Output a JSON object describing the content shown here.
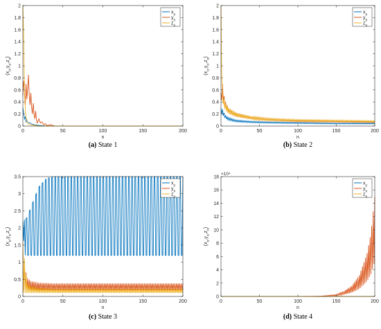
{
  "colors": {
    "x": "#0072BD",
    "y": "#D95319",
    "z": "#EDB120",
    "axis": "#262626"
  },
  "chart_data": [
    {
      "type": "line",
      "caption_tag": "(a)",
      "caption_text": "State 1",
      "xlabel": "n",
      "ylabel": "(x_n,y_n,z_n)",
      "xlim": [
        0,
        200
      ],
      "ylim": [
        0,
        2
      ],
      "xticks": [
        0,
        50,
        100,
        150,
        200
      ],
      "yticks": [
        0,
        0.2,
        0.4,
        0.6,
        0.8,
        1,
        1.2,
        1.4,
        1.6,
        1.8,
        2
      ],
      "ytick_labels": [
        "0",
        "0.2",
        "0.4",
        "0.6",
        "0.8",
        "1",
        "1.2",
        "1.4",
        "1.6",
        "1.8",
        "2"
      ],
      "legend": [
        "x_n",
        "y_n",
        "z_n"
      ],
      "legend_position": "top-right",
      "series": [
        {
          "name": "x_n",
          "x": [
            0,
            1,
            2,
            3,
            4,
            5,
            6,
            8,
            10,
            12,
            15,
            20,
            30,
            200
          ],
          "values": [
            0.3,
            0.22,
            0.12,
            0.15,
            0.07,
            0.1,
            0.05,
            0.06,
            0.04,
            0.03,
            0.02,
            0.01,
            0,
            0
          ]
        },
        {
          "name": "y_n",
          "x": [
            0,
            1,
            2,
            3,
            4,
            5,
            6,
            7,
            8,
            9,
            10,
            11,
            12,
            13,
            14,
            15,
            16,
            17,
            18,
            20,
            22,
            24,
            26,
            28,
            30,
            35,
            40,
            200
          ],
          "values": [
            0.5,
            0.75,
            0.6,
            0.35,
            0.7,
            0.45,
            0.62,
            0.85,
            0.5,
            0.35,
            0.55,
            0.3,
            0.2,
            0.38,
            0.2,
            0.12,
            0.25,
            0.1,
            0.05,
            0.12,
            0.05,
            0.07,
            0.02,
            0.04,
            0.01,
            0.02,
            0,
            0
          ]
        },
        {
          "name": "z_n",
          "x": [
            0,
            1,
            2,
            3,
            4,
            5,
            6,
            8,
            10,
            15,
            20,
            200
          ],
          "values": [
            2.0,
            1.5,
            0.6,
            0.3,
            0.15,
            0.08,
            0.05,
            0.03,
            0.02,
            0.01,
            0,
            0
          ]
        }
      ]
    },
    {
      "type": "line",
      "caption_tag": "(b)",
      "caption_text": "State 2",
      "xlabel": "n",
      "ylabel": "(x_n,y_n,z_n)",
      "xlim": [
        0,
        200
      ],
      "ylim": [
        0,
        2
      ],
      "xticks": [
        0,
        50,
        100,
        150,
        200
      ],
      "yticks": [
        0,
        0.2,
        0.4,
        0.6,
        0.8,
        1,
        1.2,
        1.4,
        1.6,
        1.8,
        2
      ],
      "ytick_labels": [
        "0",
        "0.2",
        "0.4",
        "0.6",
        "0.8",
        "1",
        "1.2",
        "1.4",
        "1.6",
        "1.8",
        "2"
      ],
      "legend": [
        "x_n",
        "y_n",
        "z_n"
      ],
      "legend_position": "top-right",
      "series": [
        {
          "name": "x_n",
          "x": [
            0,
            2,
            4,
            6,
            10,
            20,
            40,
            60,
            100,
            150,
            200
          ],
          "values": [
            0.3,
            0.28,
            0.22,
            0.18,
            0.14,
            0.1,
            0.08,
            0.07,
            0.06,
            0.05,
            0.05
          ]
        },
        {
          "name": "y_n",
          "x": [
            0,
            2,
            4,
            6,
            10,
            20,
            40,
            60,
            100,
            150,
            200
          ],
          "values": [
            0.55,
            0.7,
            0.5,
            0.4,
            0.3,
            0.22,
            0.16,
            0.13,
            0.1,
            0.09,
            0.08
          ]
        },
        {
          "name": "z_n",
          "x": [
            0,
            1,
            2,
            4,
            6,
            10,
            20,
            40,
            60,
            100,
            150,
            200
          ],
          "values": [
            2.0,
            1.2,
            0.6,
            0.45,
            0.38,
            0.3,
            0.22,
            0.16,
            0.13,
            0.11,
            0.1,
            0.09
          ]
        }
      ]
    },
    {
      "type": "line",
      "caption_tag": "(c)",
      "caption_text": "State 3",
      "xlabel": "n",
      "ylabel": "(x_n,y_n,z_n)",
      "xlim": [
        0,
        200
      ],
      "ylim": [
        0,
        3.5
      ],
      "xticks": [
        0,
        50,
        100,
        150,
        200
      ],
      "yticks": [
        0,
        0.5,
        1,
        1.5,
        2,
        2.5,
        3,
        3.5
      ],
      "ytick_labels": [
        "0",
        "0.5",
        "1",
        "1.5",
        "2",
        "2.5",
        "3",
        "3.5"
      ],
      "legend": [
        "x_n",
        "y_n",
        "z_n"
      ],
      "legend_position": "top-right",
      "series": [
        {
          "name": "x_n",
          "x": [
            0,
            5,
            10,
            20,
            30,
            40,
            60,
            100,
            150,
            200
          ],
          "values": [
            2.2,
            2.3,
            2.6,
            3.2,
            3.45,
            3.5,
            3.5,
            3.5,
            3.5,
            3.5
          ]
        },
        {
          "name": "y_n",
          "x": [
            0,
            5,
            10,
            20,
            40,
            100,
            200
          ],
          "values": [
            1.3,
            0.55,
            0.45,
            0.4,
            0.38,
            0.38,
            0.38
          ]
        },
        {
          "name": "z_n",
          "x": [
            0,
            5,
            10,
            20,
            40,
            100,
            200
          ],
          "values": [
            1.6,
            0.4,
            0.3,
            0.25,
            0.22,
            0.22,
            0.22
          ]
        }
      ]
    },
    {
      "type": "line",
      "caption_tag": "(d)",
      "caption_text": "State 4",
      "xlabel": "n",
      "ylabel": "(x_n,y_n,z_n)",
      "exponent_label": "×10⁴",
      "xlim": [
        0,
        200
      ],
      "ylim": [
        0,
        18
      ],
      "xticks": [
        0,
        50,
        100,
        150,
        200
      ],
      "yticks": [
        0,
        2,
        4,
        6,
        8,
        10,
        12,
        14,
        16,
        18
      ],
      "ytick_labels": [
        "0",
        "2",
        "4",
        "6",
        "8",
        "10",
        "12",
        "14",
        "16",
        "18"
      ],
      "legend": [
        "x_n",
        "y_n",
        "z_n"
      ],
      "legend_position": "top-right",
      "series": [
        {
          "name": "x_n",
          "x": [
            0,
            200
          ],
          "values": [
            0,
            0
          ]
        },
        {
          "name": "y_n",
          "x": [
            0,
            100,
            130,
            150,
            160,
            170,
            180,
            190,
            195,
            200
          ],
          "values": [
            0,
            0,
            0.05,
            0.3,
            0.8,
            1.6,
            3.2,
            6.5,
            9.5,
            15
          ]
        },
        {
          "name": "z_n",
          "x": [
            0,
            200
          ],
          "values": [
            0,
            0
          ]
        }
      ]
    }
  ]
}
